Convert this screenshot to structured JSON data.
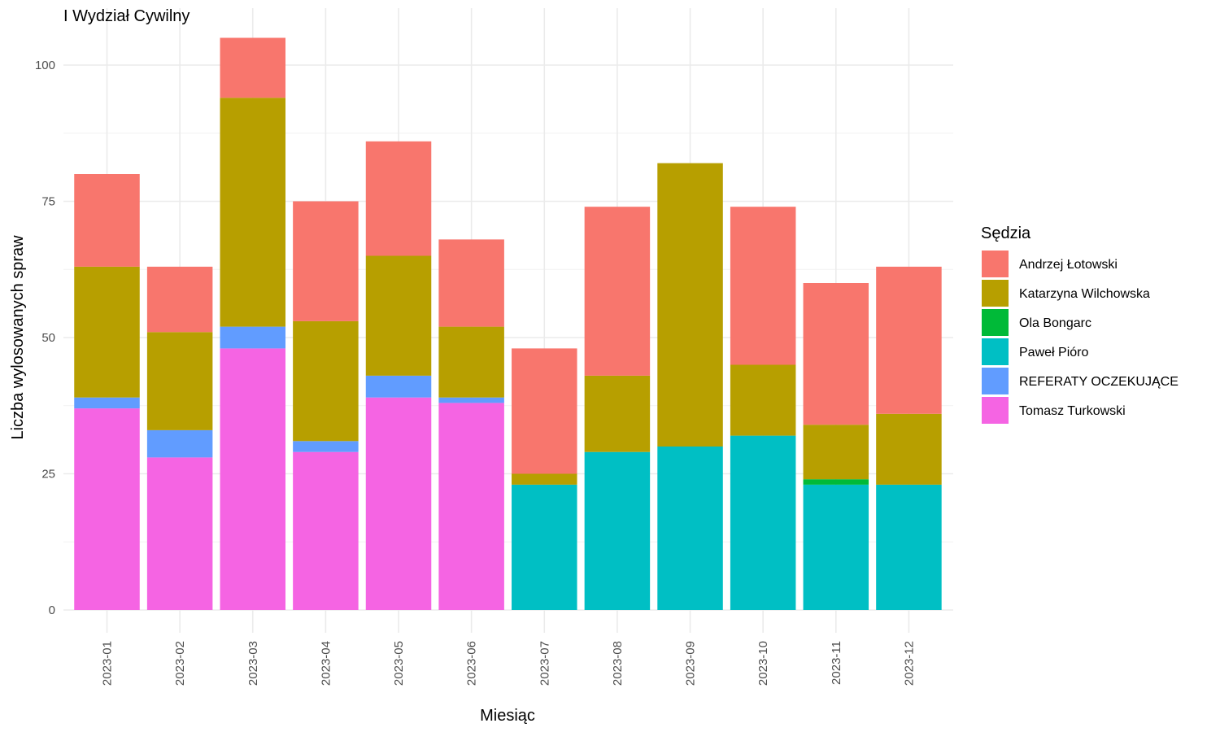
{
  "chart_data": {
    "type": "bar",
    "stacked": true,
    "title": "I Wydział Cywilny",
    "xlabel": "Miesiąc",
    "ylabel": "Liczba wylosowanych spraw",
    "ylim": [
      0,
      105
    ],
    "yticks": [
      0,
      25,
      50,
      75,
      100
    ],
    "grid": true,
    "legend_title": "Sędzia",
    "legend_position": "right",
    "categories": [
      "2023-01",
      "2023-02",
      "2023-03",
      "2023-04",
      "2023-05",
      "2023-06",
      "2023-07",
      "2023-08",
      "2023-09",
      "2023-10",
      "2023-11",
      "2023-12"
    ],
    "stack_order": [
      "Tomasz Turkowski",
      "REFERATY OCZEKUJĄCE",
      "Paweł Pióro",
      "Ola Bongarc",
      "Katarzyna Wilchowska",
      "Andrzej Łotowski"
    ],
    "series": [
      {
        "name": "Andrzej Łotowski",
        "color": "#F8766D",
        "values": [
          17,
          12,
          11,
          22,
          21,
          16,
          23,
          31,
          0,
          29,
          26,
          27
        ]
      },
      {
        "name": "Katarzyna Wilchowska",
        "color": "#B79F00",
        "values": [
          24,
          18,
          42,
          22,
          22,
          13,
          2,
          14,
          52,
          13,
          10,
          13
        ]
      },
      {
        "name": "Ola Bongarc",
        "color": "#00BA38",
        "values": [
          0,
          0,
          0,
          0,
          0,
          0,
          0,
          0,
          0,
          0,
          1,
          0
        ]
      },
      {
        "name": "Paweł Pióro",
        "color": "#00BFC4",
        "values": [
          0,
          0,
          0,
          0,
          0,
          0,
          23,
          29,
          30,
          32,
          23,
          23
        ]
      },
      {
        "name": "REFERATY OCZEKUJĄCE",
        "color": "#619CFF",
        "values": [
          2,
          5,
          4,
          2,
          4,
          1,
          0,
          0,
          0,
          0,
          0,
          0
        ]
      },
      {
        "name": "Tomasz Turkowski",
        "color": "#F564E3",
        "values": [
          37,
          28,
          48,
          29,
          39,
          38,
          0,
          0,
          0,
          0,
          0,
          0
        ]
      }
    ]
  }
}
